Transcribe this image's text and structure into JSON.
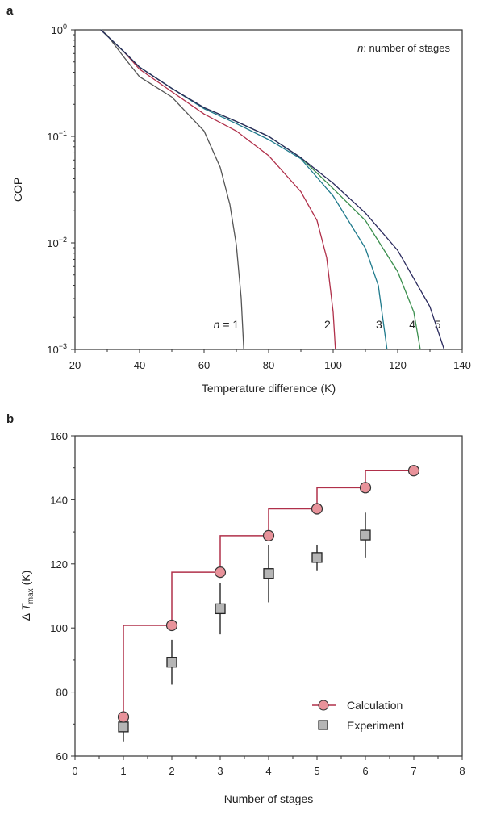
{
  "chart_data": [
    {
      "panel_label": "a",
      "type": "line",
      "title": "",
      "xlabel": "Temperature difference (K)",
      "ylabel": "COP",
      "xlim": [
        20,
        140
      ],
      "ylim": [
        0.001,
        1
      ],
      "yscale": "log",
      "xticks": [
        "20",
        "40",
        "60",
        "80",
        "100",
        "120",
        "140"
      ],
      "yticks": [
        {
          "base": "10",
          "exp": "0"
        },
        {
          "base": "10",
          "exp": "−1"
        },
        {
          "base": "10",
          "exp": "−2"
        },
        {
          "base": "10",
          "exp": "−3"
        }
      ],
      "annotation": {
        "italic": "n",
        "text": ": number of stages"
      },
      "series": [
        {
          "name": "n = 1",
          "label_italic": "n",
          "label": " = 1",
          "color": "#555555",
          "x": [
            28,
            30,
            35,
            40,
            50,
            60,
            65,
            68,
            70,
            71.5,
            72.3
          ],
          "log10_y": [
            0,
            -0.05,
            -0.25,
            -0.44,
            -0.63,
            -0.95,
            -1.29,
            -1.64,
            -2.02,
            -2.52,
            -3
          ]
        },
        {
          "name": "2",
          "label": "2",
          "color": "#b0304a",
          "x": [
            28,
            35,
            40,
            50,
            60,
            70,
            80,
            90,
            95,
            98,
            100,
            100.7
          ],
          "log10_y": [
            0,
            -0.2,
            -0.37,
            -0.58,
            -0.79,
            -0.95,
            -1.18,
            -1.52,
            -1.79,
            -2.14,
            -2.65,
            -3
          ]
        },
        {
          "name": "3",
          "label": "3",
          "color": "#1f7a8c",
          "x": [
            28,
            35,
            40,
            50,
            60,
            70,
            80,
            90,
            100,
            110,
            114,
            116.7
          ],
          "log10_y": [
            0,
            -0.2,
            -0.35,
            -0.55,
            -0.74,
            -0.88,
            -1.03,
            -1.21,
            -1.56,
            -2.05,
            -2.4,
            -3
          ]
        },
        {
          "name": "4",
          "label": "4",
          "color": "#3b8f4e",
          "x": [
            28,
            35,
            40,
            50,
            60,
            70,
            80,
            90,
            100,
            110,
            120,
            125,
            127
          ],
          "log10_y": [
            0,
            -0.2,
            -0.35,
            -0.55,
            -0.73,
            -0.86,
            -1.0,
            -1.2,
            -1.49,
            -1.79,
            -2.27,
            -2.65,
            -3
          ]
        },
        {
          "name": "5",
          "label": "5",
          "color": "#2b2b5e",
          "x": [
            28,
            35,
            40,
            50,
            60,
            70,
            80,
            90,
            100,
            110,
            120,
            130,
            134.4
          ],
          "log10_y": [
            0,
            -0.2,
            -0.35,
            -0.55,
            -0.73,
            -0.86,
            -1.0,
            -1.2,
            -1.44,
            -1.72,
            -2.07,
            -2.6,
            -3
          ]
        }
      ]
    },
    {
      "panel_label": "b",
      "type": "scatter",
      "title": "",
      "xlabel": "Number of stages",
      "ylabel": {
        "prefix": "Δ ",
        "italic": "T",
        "sub": "max",
        "suffix": " (K)"
      },
      "xlim": [
        0,
        8
      ],
      "ylim": [
        60,
        160
      ],
      "xticks": [
        "0",
        "1",
        "2",
        "3",
        "4",
        "5",
        "6",
        "7",
        "8"
      ],
      "yticks": [
        "60",
        "80",
        "100",
        "120",
        "140",
        "160"
      ],
      "legend_position": "bottom-right",
      "series": [
        {
          "name": "Calculation",
          "marker": "circle",
          "color": "#e8929a",
          "line_color": "#b0304a",
          "step": true,
          "x": [
            1,
            2,
            3,
            4,
            5,
            6,
            7
          ],
          "y": [
            72.2,
            100.8,
            117.4,
            128.8,
            137.2,
            143.8,
            149.1
          ]
        },
        {
          "name": "Experiment",
          "marker": "square",
          "color": "#b5b5b5",
          "x": [
            1,
            2,
            3,
            4,
            5,
            6
          ],
          "y": [
            69.1,
            89.3,
            106,
            117,
            122,
            129
          ],
          "yerr": [
            4.5,
            7,
            8,
            9,
            4,
            7
          ]
        }
      ]
    }
  ]
}
